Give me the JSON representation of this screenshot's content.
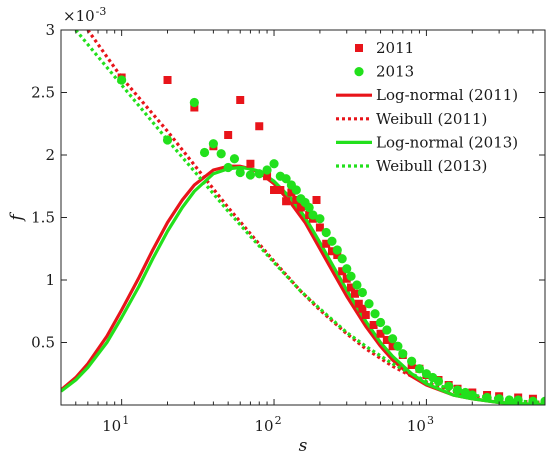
{
  "chart_data": {
    "type": "scatter",
    "xlabel": "s",
    "ylabel": "f",
    "xscale": "log",
    "xlim": [
      4,
      6000
    ],
    "ylim": [
      0,
      0.003
    ],
    "y_multiplier_label": "×10",
    "y_multiplier_exp": "-3",
    "grid": false,
    "legend_position": "top-right",
    "x_ticks": [
      {
        "value": 10,
        "base": "10",
        "exp": "1"
      },
      {
        "value": 100,
        "base": "10",
        "exp": "2"
      },
      {
        "value": 1000,
        "base": "10",
        "exp": "3"
      }
    ],
    "y_ticks": [
      {
        "value": 0.0005,
        "label": "0.5"
      },
      {
        "value": 0.001,
        "label": "1"
      },
      {
        "value": 0.0015,
        "label": "1.5"
      },
      {
        "value": 0.002,
        "label": "2"
      },
      {
        "value": 0.0025,
        "label": "2.5"
      },
      {
        "value": 0.003,
        "label": "3"
      }
    ],
    "series": [
      {
        "name": "2011",
        "kind": "markers",
        "marker": "square",
        "color": "#e8141a",
        "points": [
          [
            10,
            0.00262
          ],
          [
            20,
            0.0026
          ],
          [
            30,
            0.00238
          ],
          [
            40,
            0.00207
          ],
          [
            50,
            0.00216
          ],
          [
            60,
            0.00244
          ],
          [
            70,
            0.00193
          ],
          [
            80,
            0.00223
          ],
          [
            90,
            0.00183
          ],
          [
            100,
            0.00172
          ],
          [
            110,
            0.00172
          ],
          [
            120,
            0.00163
          ],
          [
            130,
            0.0017
          ],
          [
            140,
            0.00164
          ],
          [
            150,
            0.00158
          ],
          [
            160,
            0.00159
          ],
          [
            170,
            0.00152
          ],
          [
            180,
            0.00149
          ],
          [
            190,
            0.00164
          ],
          [
            200,
            0.00142
          ],
          [
            220,
            0.00129
          ],
          [
            240,
            0.00123
          ],
          [
            260,
            0.0012
          ],
          [
            280,
            0.00107
          ],
          [
            300,
            0.00101
          ],
          [
            320,
            0.00094
          ],
          [
            340,
            0.00089
          ],
          [
            360,
            0.00081
          ],
          [
            380,
            0.00077
          ],
          [
            400,
            0.00072
          ],
          [
            450,
            0.00064
          ],
          [
            500,
            0.00057
          ],
          [
            550,
            0.00052
          ],
          [
            600,
            0.00047
          ],
          [
            700,
            0.0004
          ],
          [
            800,
            0.00032
          ],
          [
            900,
            0.00029
          ],
          [
            1000,
            0.00024
          ],
          [
            1200,
            0.0002
          ],
          [
            1400,
            0.00016
          ],
          [
            1600,
            0.00013
          ],
          [
            2000,
            0.0001
          ],
          [
            2500,
            8e-05
          ],
          [
            3000,
            7e-05
          ],
          [
            4000,
            6e-05
          ],
          [
            5000,
            5e-05
          ]
        ]
      },
      {
        "name": "2013",
        "kind": "markers",
        "marker": "circle",
        "color": "#22e01c",
        "points": [
          [
            10,
            0.0026
          ],
          [
            20,
            0.00212
          ],
          [
            30,
            0.00242
          ],
          [
            35,
            0.00202
          ],
          [
            40,
            0.00209
          ],
          [
            45,
            0.00201
          ],
          [
            50,
            0.0019
          ],
          [
            55,
            0.00197
          ],
          [
            60,
            0.00186
          ],
          [
            70,
            0.00184
          ],
          [
            80,
            0.00185
          ],
          [
            90,
            0.00188
          ],
          [
            100,
            0.00193
          ],
          [
            110,
            0.00183
          ],
          [
            120,
            0.00181
          ],
          [
            130,
            0.00176
          ],
          [
            140,
            0.00172
          ],
          [
            150,
            0.00165
          ],
          [
            160,
            0.00162
          ],
          [
            170,
            0.00158
          ],
          [
            180,
            0.00152
          ],
          [
            200,
            0.00149
          ],
          [
            220,
            0.00138
          ],
          [
            240,
            0.00131
          ],
          [
            260,
            0.00124
          ],
          [
            280,
            0.00117
          ],
          [
            300,
            0.00109
          ],
          [
            320,
            0.00103
          ],
          [
            350,
            0.00096
          ],
          [
            380,
            0.0009
          ],
          [
            420,
            0.00081
          ],
          [
            460,
            0.00073
          ],
          [
            500,
            0.00066
          ],
          [
            550,
            0.0006
          ],
          [
            600,
            0.00053
          ],
          [
            650,
            0.00047
          ],
          [
            700,
            0.00041
          ],
          [
            800,
            0.00035
          ],
          [
            900,
            0.00029
          ],
          [
            1000,
            0.00025
          ],
          [
            1100,
            0.00022
          ],
          [
            1200,
            0.00019
          ],
          [
            1400,
            0.00015
          ],
          [
            1600,
            0.00012
          ],
          [
            1800,
            0.0001
          ],
          [
            2000,
            8e-05
          ],
          [
            2500,
            6e-05
          ],
          [
            3000,
            5e-05
          ],
          [
            3500,
            4e-05
          ],
          [
            4000,
            4e-05
          ],
          [
            5000,
            3e-05
          ],
          [
            6000,
            3e-05
          ]
        ]
      },
      {
        "name": "Log-normal (2011)",
        "kind": "line",
        "dash": "solid",
        "color": "#e8141a",
        "points": [
          [
            4,
            0.00012
          ],
          [
            5,
            0.00022
          ],
          [
            6,
            0.00033
          ],
          [
            8,
            0.00055
          ],
          [
            10,
            0.00076
          ],
          [
            13,
            0.00102
          ],
          [
            16,
            0.00124
          ],
          [
            20,
            0.00146
          ],
          [
            25,
            0.00164
          ],
          [
            30,
            0.00176
          ],
          [
            40,
            0.00188
          ],
          [
            50,
            0.00191
          ],
          [
            60,
            0.00191
          ],
          [
            70,
            0.00189
          ],
          [
            80,
            0.00186
          ],
          [
            100,
            0.00177
          ],
          [
            130,
            0.00161
          ],
          [
            160,
            0.00146
          ],
          [
            200,
            0.00125
          ],
          [
            250,
            0.00104
          ],
          [
            300,
            0.00087
          ],
          [
            400,
            0.00063
          ],
          [
            500,
            0.00047
          ],
          [
            600,
            0.00036
          ],
          [
            800,
            0.00023
          ],
          [
            1000,
            0.00016
          ],
          [
            1500,
            8e-05
          ],
          [
            2000,
            5e-05
          ],
          [
            3000,
            2e-05
          ],
          [
            4000,
            1e-05
          ],
          [
            6000,
            4e-06
          ]
        ]
      },
      {
        "name": "Weibull (2011)",
        "kind": "line",
        "dash": "dotted",
        "color": "#e8141a",
        "points": [
          [
            6,
            0.003
          ],
          [
            10,
            0.00262
          ],
          [
            20,
            0.00219
          ],
          [
            30,
            0.00192
          ],
          [
            50,
            0.00158
          ],
          [
            70,
            0.00137
          ],
          [
            100,
            0.00115
          ],
          [
            150,
            0.00091
          ],
          [
            200,
            0.00076
          ],
          [
            300,
            0.00057
          ],
          [
            400,
            0.00045
          ],
          [
            600,
            0.00031
          ],
          [
            800,
            0.00023
          ],
          [
            1000,
            0.00018
          ],
          [
            1500,
            0.00011
          ],
          [
            2000,
            7e-05
          ],
          [
            3000,
            4e-05
          ],
          [
            4000,
            3e-05
          ],
          [
            6000,
            2e-05
          ]
        ]
      },
      {
        "name": "Log-normal (2013)",
        "kind": "line",
        "dash": "solid",
        "color": "#22e01c",
        "points": [
          [
            4,
            0.00011
          ],
          [
            5,
            0.0002
          ],
          [
            6,
            0.0003
          ],
          [
            8,
            0.0005
          ],
          [
            10,
            0.0007
          ],
          [
            13,
            0.00095
          ],
          [
            16,
            0.00117
          ],
          [
            20,
            0.00139
          ],
          [
            25,
            0.00158
          ],
          [
            30,
            0.00171
          ],
          [
            40,
            0.00185
          ],
          [
            50,
            0.00189
          ],
          [
            60,
            0.0019
          ],
          [
            70,
            0.00189
          ],
          [
            80,
            0.00187
          ],
          [
            100,
            0.00179
          ],
          [
            130,
            0.00165
          ],
          [
            160,
            0.0015
          ],
          [
            200,
            0.0013
          ],
          [
            250,
            0.00109
          ],
          [
            300,
            0.00092
          ],
          [
            400,
            0.00067
          ],
          [
            500,
            0.0005
          ],
          [
            600,
            0.00039
          ],
          [
            800,
            0.00025
          ],
          [
            1000,
            0.00017
          ],
          [
            1500,
            8e-05
          ],
          [
            2000,
            5e-05
          ],
          [
            3000,
            2e-05
          ],
          [
            4000,
            1e-05
          ],
          [
            6000,
            4e-06
          ]
        ]
      },
      {
        "name": "Weibull (2013)",
        "kind": "line",
        "dash": "dotted",
        "color": "#22e01c",
        "points": [
          [
            5,
            0.003
          ],
          [
            10,
            0.00256
          ],
          [
            20,
            0.00212
          ],
          [
            30,
            0.00187
          ],
          [
            50,
            0.00155
          ],
          [
            70,
            0.00135
          ],
          [
            100,
            0.00114
          ],
          [
            150,
            0.00091
          ],
          [
            200,
            0.00077
          ],
          [
            300,
            0.00058
          ],
          [
            400,
            0.00047
          ],
          [
            600,
            0.00033
          ],
          [
            800,
            0.00025
          ],
          [
            1000,
            0.00019
          ],
          [
            1500,
            0.00012
          ],
          [
            2000,
            8e-05
          ],
          [
            3000,
            5e-05
          ],
          [
            4000,
            3e-05
          ],
          [
            6000,
            2e-05
          ]
        ]
      }
    ]
  }
}
